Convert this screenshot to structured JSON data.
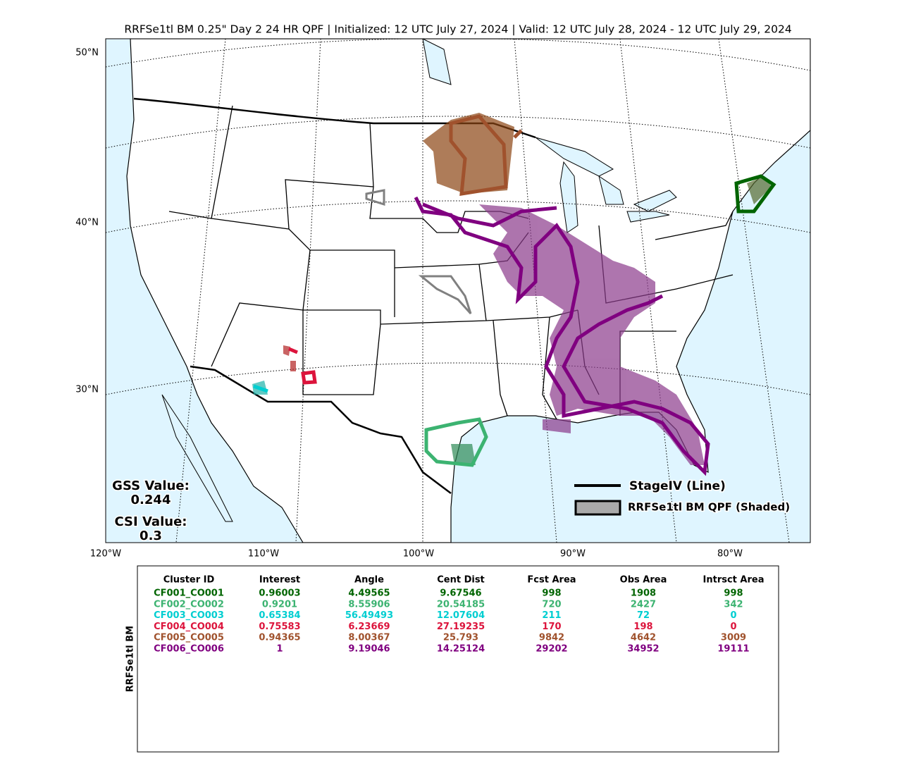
{
  "title": "RRFSe1tl BM 0.25\" Day 2 24 HR QPF | Initialized: 12 UTC July 27, 2024 | Valid: 12 UTC July 28, 2024 - 12 UTC July 29, 2024",
  "map": {
    "lat_labels": [
      "50°N",
      "40°N",
      "30°N"
    ],
    "lon_labels": [
      "120°W",
      "110°W",
      "100°W",
      "90°W",
      "80°W"
    ]
  },
  "scores": {
    "gss_label": "GSS Value:",
    "gss": "0.244",
    "csi_label": "CSI Value:",
    "csi": "0.3"
  },
  "legend": {
    "line": "StageIV (Line)",
    "shaded": "RRFSe1tl BM QPF (Shaded)"
  },
  "table": {
    "side_label": "RRFSe1tl BM",
    "columns": [
      "Cluster ID",
      "Interest",
      "Angle",
      "Cent Dist",
      "Fcst Area",
      "Obs Area",
      "Intrsct Area"
    ],
    "rows": [
      [
        "CF001_CO001",
        0.96003,
        4.49565,
        9.67546,
        998,
        1908,
        998
      ],
      [
        "CF002_CO002",
        0.9201,
        8.55906,
        20.54185,
        720,
        2427,
        342
      ],
      [
        "CF003_CO003",
        0.65384,
        56.49493,
        12.07604,
        211,
        72,
        0
      ],
      [
        "CF004_CO004",
        0.75583,
        6.23669,
        27.19235,
        170,
        198,
        0
      ],
      [
        "CF005_CO005",
        0.94365,
        8.00367,
        25.793,
        9842,
        4642,
        3009
      ],
      [
        "CF006_CO006",
        1,
        9.19046,
        14.25124,
        29202,
        34952,
        19111
      ]
    ],
    "row_colors": [
      "#006400",
      "#3cb371",
      "#00ced1",
      "#dc143c",
      "#a0522d",
      "#800080"
    ]
  }
}
